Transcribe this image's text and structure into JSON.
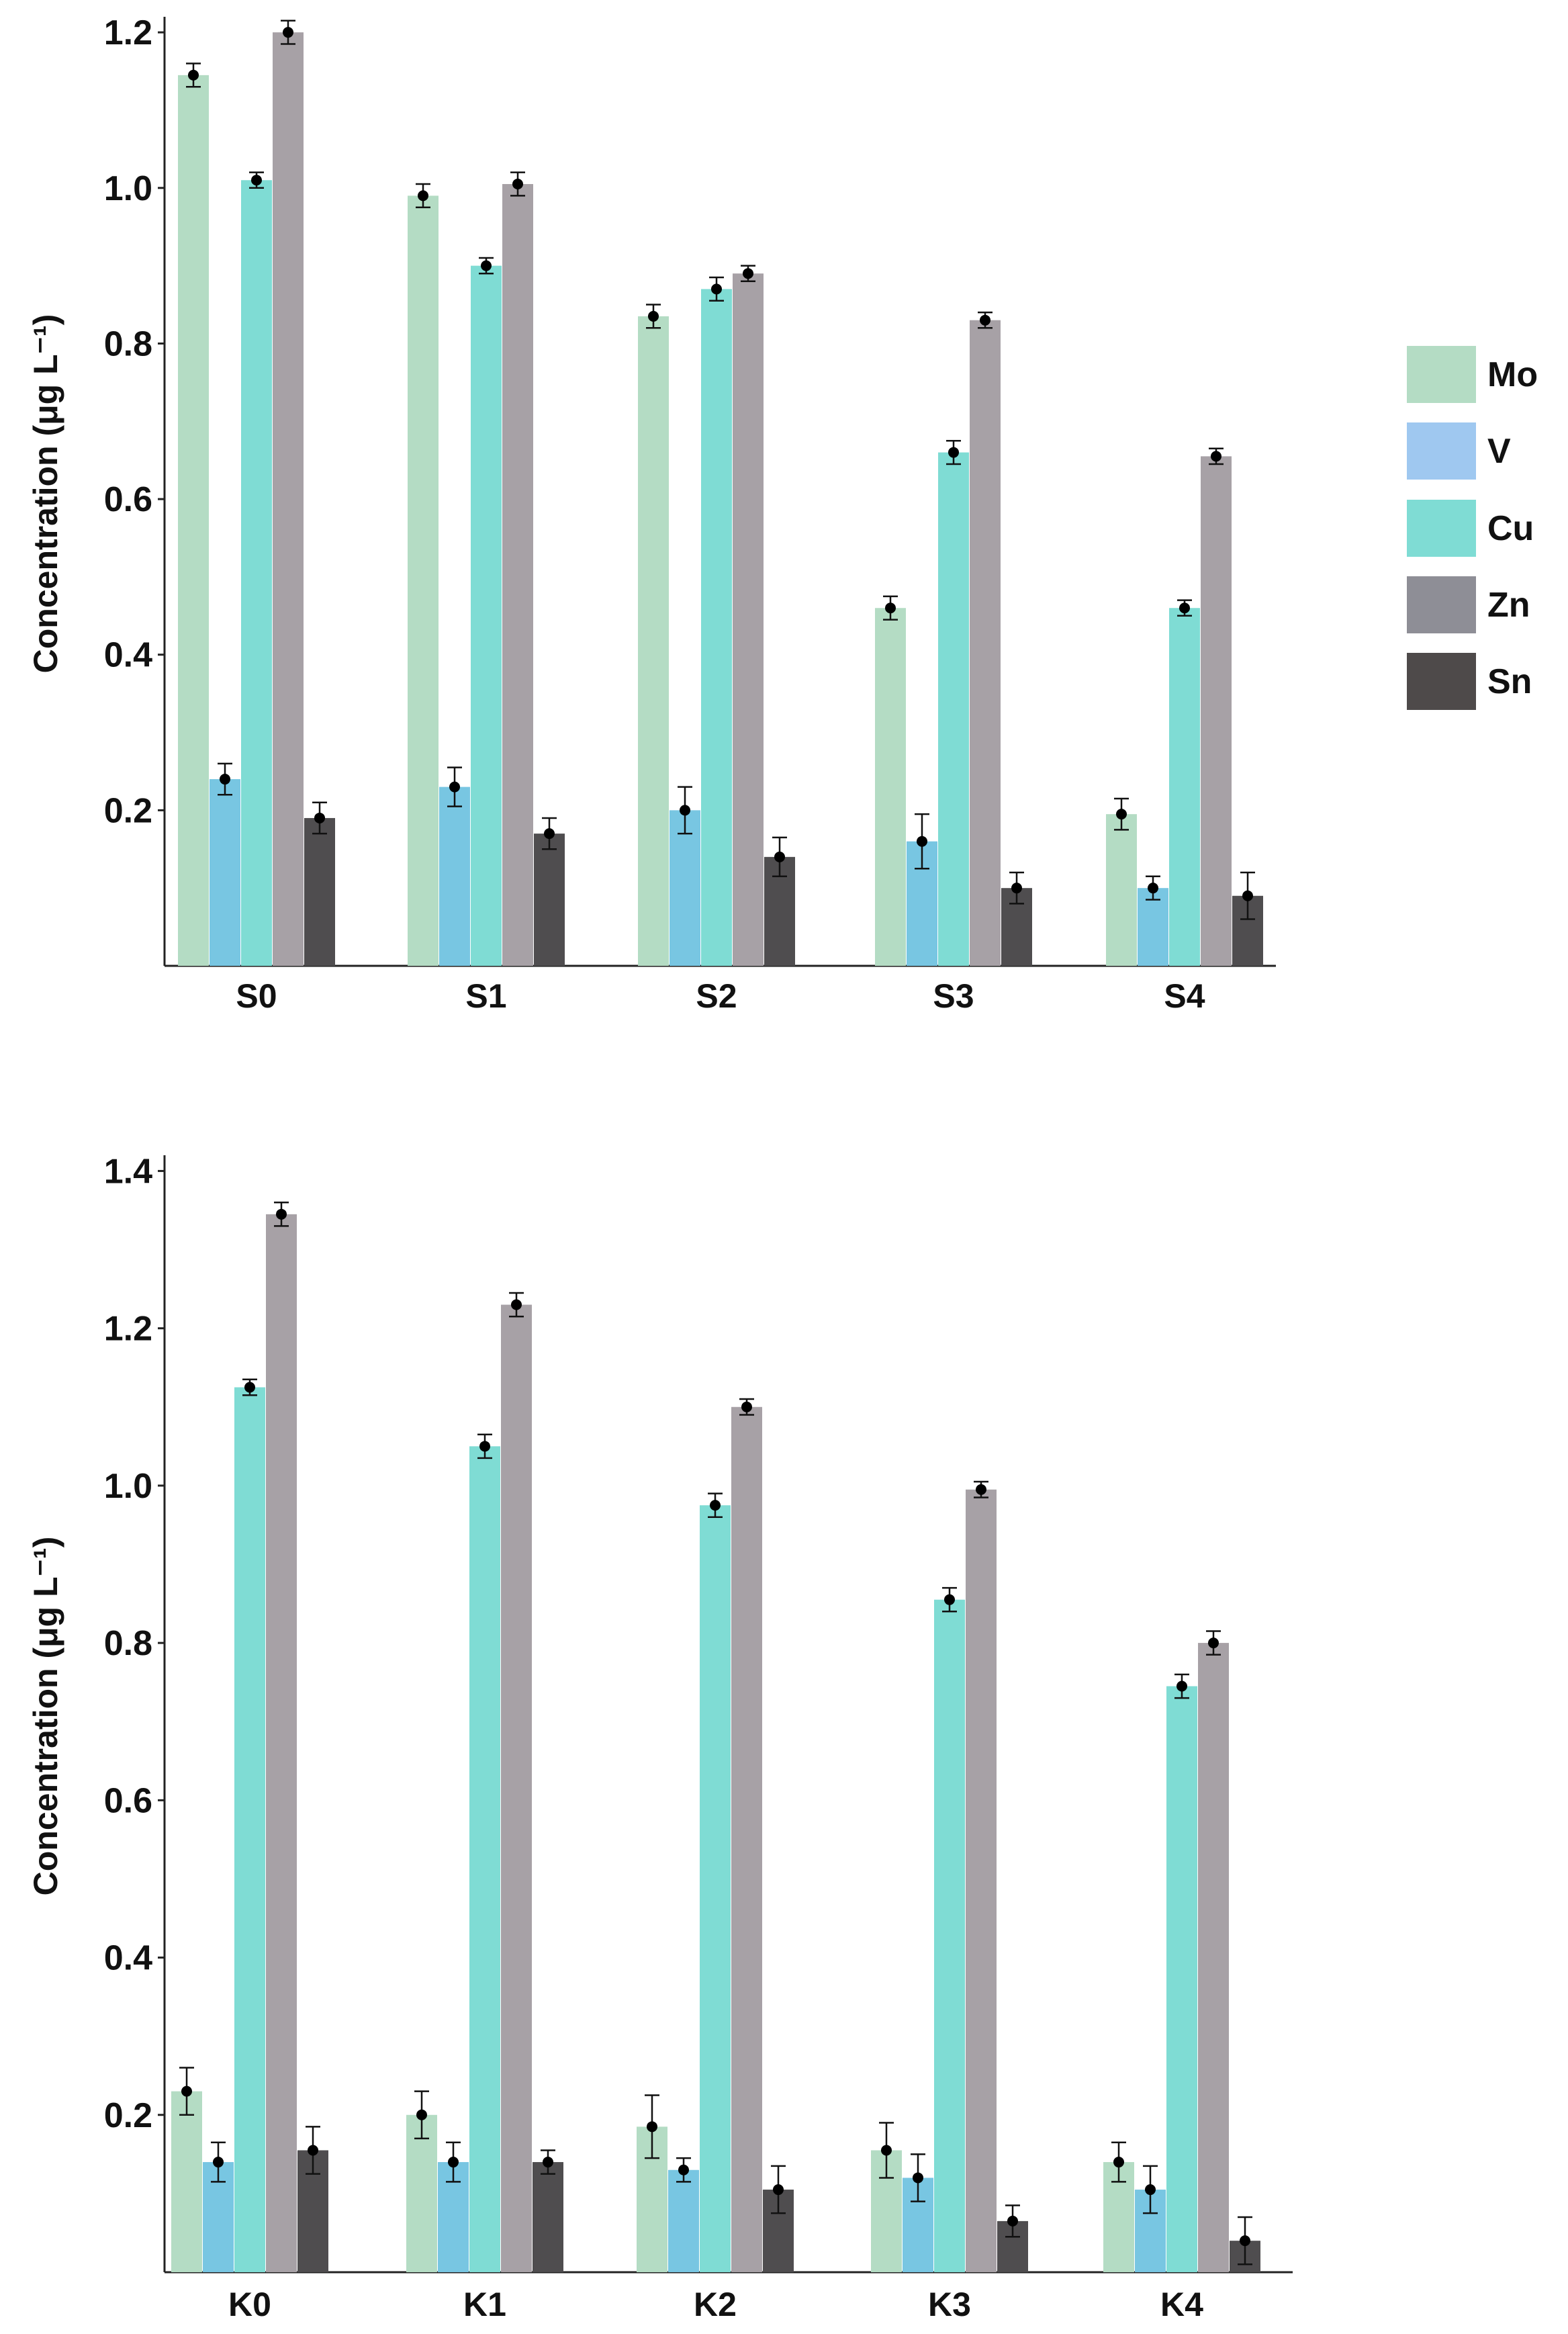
{
  "chart_data": [
    {
      "type": "bar",
      "title": "",
      "xlabel": "",
      "ylabel": "Concentration (μg L⁻¹)",
      "ylim": [
        0.0,
        1.22
      ],
      "yticks": [
        0.2,
        0.4,
        0.6,
        0.8,
        1.0,
        1.2
      ],
      "ytick_labels": [
        "0.2",
        "0.4",
        "0.6",
        "0.8",
        "1.0",
        "1.2"
      ],
      "categories": [
        "S0",
        "S1",
        "S2",
        "S3",
        "S4"
      ],
      "series": [
        {
          "name": "Mo",
          "values": [
            1.145,
            0.99,
            0.835,
            0.46,
            0.195
          ],
          "errors": [
            0.015,
            0.015,
            0.015,
            0.015,
            0.02
          ]
        },
        {
          "name": "V",
          "values": [
            0.24,
            0.23,
            0.2,
            0.16,
            0.1
          ],
          "errors": [
            0.02,
            0.025,
            0.03,
            0.035,
            0.015
          ]
        },
        {
          "name": "Cu",
          "values": [
            1.01,
            0.9,
            0.87,
            0.66,
            0.46
          ],
          "errors": [
            0.01,
            0.01,
            0.015,
            0.015,
            0.01
          ]
        },
        {
          "name": "Zn",
          "values": [
            1.2,
            1.005,
            0.89,
            0.83,
            0.655
          ],
          "errors": [
            0.015,
            0.015,
            0.01,
            0.01,
            0.01
          ]
        },
        {
          "name": "Sn",
          "values": [
            0.19,
            0.17,
            0.14,
            0.1,
            0.09
          ],
          "errors": [
            0.02,
            0.02,
            0.025,
            0.02,
            0.03
          ]
        }
      ]
    },
    {
      "type": "bar",
      "title": "",
      "xlabel": "",
      "ylabel": "Concentration (μg L⁻¹)",
      "ylim": [
        0.0,
        1.42
      ],
      "yticks": [
        0.2,
        0.4,
        0.6,
        0.8,
        1.0,
        1.2,
        1.4
      ],
      "ytick_labels": [
        "0.2",
        "0.4",
        "0.6",
        "0.8",
        "1.0",
        "1.2",
        "1.4"
      ],
      "categories": [
        "K0",
        "K1",
        "K2",
        "K3",
        "K4"
      ],
      "series": [
        {
          "name": "Mo",
          "values": [
            0.23,
            0.2,
            0.185,
            0.155,
            0.14
          ],
          "errors": [
            0.03,
            0.03,
            0.04,
            0.035,
            0.025
          ]
        },
        {
          "name": "V",
          "values": [
            0.14,
            0.14,
            0.13,
            0.12,
            0.105
          ],
          "errors": [
            0.025,
            0.025,
            0.015,
            0.03,
            0.03
          ]
        },
        {
          "name": "Cu",
          "values": [
            1.125,
            1.05,
            0.975,
            0.855,
            0.745
          ],
          "errors": [
            0.01,
            0.015,
            0.015,
            0.015,
            0.015
          ]
        },
        {
          "name": "Zn",
          "values": [
            1.345,
            1.23,
            1.1,
            0.995,
            0.8
          ],
          "errors": [
            0.015,
            0.015,
            0.01,
            0.01,
            0.015
          ]
        },
        {
          "name": "Sn",
          "values": [
            0.155,
            0.14,
            0.105,
            0.065,
            0.04
          ],
          "errors": [
            0.03,
            0.015,
            0.03,
            0.02,
            0.03
          ]
        }
      ]
    }
  ],
  "legend": {
    "items": [
      {
        "label": "Mo",
        "color": "#b4dcc4"
      },
      {
        "label": "V",
        "color": "#9fc8f0"
      },
      {
        "label": "Cu",
        "color": "#7fdcd4"
      },
      {
        "label": "Zn",
        "color": "#8e8e96"
      },
      {
        "label": "Sn",
        "color": "#4e4a4a"
      }
    ]
  },
  "colors": {
    "bar": [
      "#b4dcc4",
      "#78c6e2",
      "#7fdcd4",
      "#a7a1a6",
      "#4f4d4f"
    ],
    "axis": "#222222",
    "dot": "#000000"
  }
}
